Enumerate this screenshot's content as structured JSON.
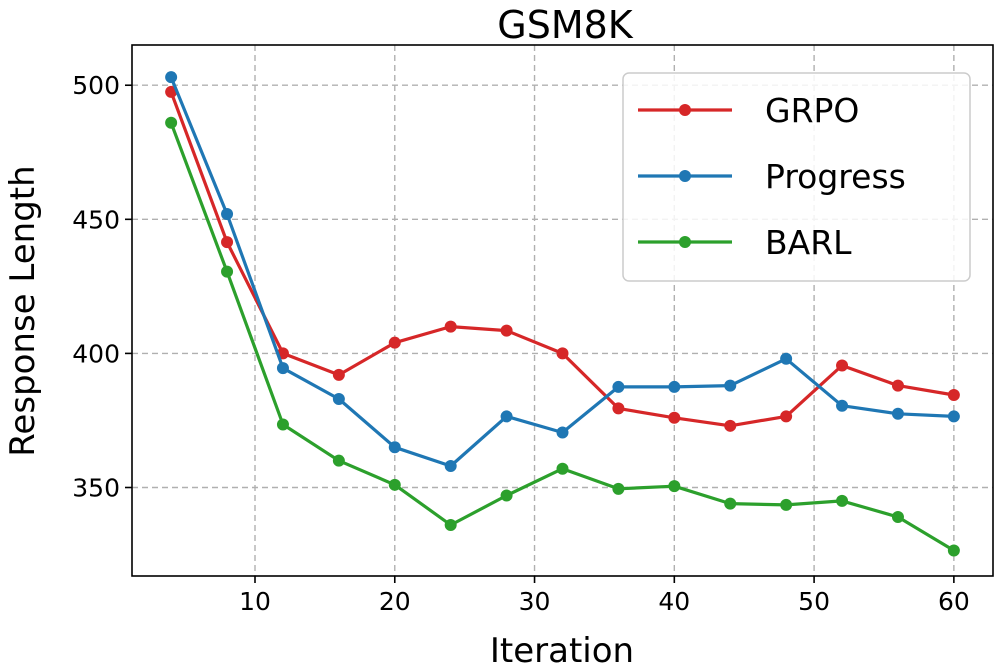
{
  "chart_data": {
    "type": "line",
    "title": "GSM8K",
    "xlabel": "Iteration",
    "ylabel": "Response Length",
    "xlim": [
      1.2,
      62.8
    ],
    "ylim": [
      317,
      515
    ],
    "xticks": [
      10,
      20,
      30,
      40,
      50,
      60
    ],
    "yticks": [
      350,
      400,
      450,
      500
    ],
    "grid": true,
    "legend_position": "top-right",
    "x": [
      4,
      8,
      12,
      16,
      20,
      24,
      28,
      32,
      36,
      40,
      44,
      48,
      52,
      56,
      60
    ],
    "series": [
      {
        "name": "GRPO",
        "color": "#d62728",
        "values": [
          497.5,
          441.5,
          400.0,
          392.0,
          404.0,
          410.0,
          408.5,
          400.0,
          379.5,
          376.0,
          373.0,
          376.5,
          395.5,
          388.0,
          384.5
        ]
      },
      {
        "name": "Progress",
        "color": "#1f77b4",
        "values": [
          503.0,
          452.0,
          394.5,
          383.0,
          365.0,
          358.0,
          376.5,
          370.5,
          387.5,
          387.5,
          388.0,
          398.0,
          380.5,
          377.5,
          376.5
        ]
      },
      {
        "name": "BARL",
        "color": "#2ca02c",
        "values": [
          486.0,
          430.5,
          373.5,
          360.0,
          351.0,
          336.0,
          347.0,
          357.0,
          349.5,
          350.5,
          344.0,
          343.5,
          345.0,
          339.0,
          326.5
        ]
      }
    ]
  }
}
